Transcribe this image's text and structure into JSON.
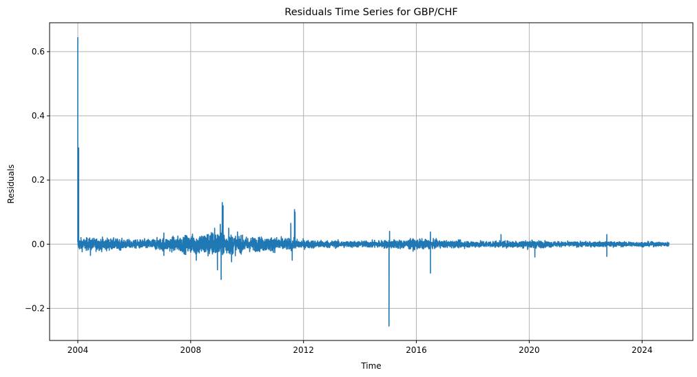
{
  "chart_data": {
    "type": "line",
    "title": "Residuals Time Series for GBP/CHF",
    "xlabel": "Time",
    "ylabel": "Residuals",
    "xlim": [
      2003.0,
      2025.8
    ],
    "ylim": [
      -0.3,
      0.69
    ],
    "grid": true,
    "x_ticks": [
      2004,
      2008,
      2012,
      2016,
      2020,
      2024
    ],
    "x_tick_labels": [
      "2004",
      "2008",
      "2012",
      "2016",
      "2020",
      "2024"
    ],
    "y_ticks": [
      -0.2,
      0.0,
      0.2,
      0.4,
      0.6
    ],
    "y_tick_labels": [
      "−0.2",
      "0.0",
      "0.2",
      "0.4",
      "0.6"
    ],
    "line_color": "#1f77b4",
    "series": [
      {
        "x_start": 2004.0,
        "x_end": 2024.95,
        "amplitude_envelope": [
          [
            2004.0,
            0.012
          ],
          [
            2005.0,
            0.012
          ],
          [
            2006.0,
            0.008
          ],
          [
            2007.0,
            0.012
          ],
          [
            2008.0,
            0.018
          ],
          [
            2008.7,
            0.025
          ],
          [
            2009.2,
            0.022
          ],
          [
            2010.0,
            0.014
          ],
          [
            2011.0,
            0.014
          ],
          [
            2012.0,
            0.008
          ],
          [
            2014.0,
            0.006
          ],
          [
            2015.0,
            0.008
          ],
          [
            2016.0,
            0.01
          ],
          [
            2017.0,
            0.007
          ],
          [
            2019.0,
            0.006
          ],
          [
            2020.0,
            0.008
          ],
          [
            2021.0,
            0.005
          ],
          [
            2023.0,
            0.005
          ],
          [
            2024.95,
            0.004
          ]
        ],
        "spikes": [
          {
            "x": 2004.0,
            "y": 0.645
          },
          {
            "x": 2004.03,
            "y": 0.3
          },
          {
            "x": 2004.05,
            "y": -0.012
          },
          {
            "x": 2004.45,
            "y": -0.035
          },
          {
            "x": 2007.05,
            "y": 0.035
          },
          {
            "x": 2007.05,
            "y": -0.035
          },
          {
            "x": 2008.2,
            "y": -0.05
          },
          {
            "x": 2008.85,
            "y": 0.05
          },
          {
            "x": 2008.95,
            "y": -0.08
          },
          {
            "x": 2009.05,
            "y": 0.062
          },
          {
            "x": 2009.08,
            "y": -0.11
          },
          {
            "x": 2009.12,
            "y": 0.13
          },
          {
            "x": 2009.15,
            "y": 0.12
          },
          {
            "x": 2009.35,
            "y": 0.05
          },
          {
            "x": 2009.45,
            "y": -0.055
          },
          {
            "x": 2011.55,
            "y": 0.065
          },
          {
            "x": 2011.6,
            "y": -0.05
          },
          {
            "x": 2011.68,
            "y": 0.108
          },
          {
            "x": 2011.7,
            "y": 0.1
          },
          {
            "x": 2015.03,
            "y": -0.255
          },
          {
            "x": 2015.05,
            "y": 0.04
          },
          {
            "x": 2016.5,
            "y": 0.038
          },
          {
            "x": 2016.5,
            "y": -0.09
          },
          {
            "x": 2019.0,
            "y": 0.03
          },
          {
            "x": 2020.2,
            "y": -0.04
          },
          {
            "x": 2022.75,
            "y": 0.03
          },
          {
            "x": 2022.75,
            "y": -0.038
          }
        ]
      }
    ]
  }
}
